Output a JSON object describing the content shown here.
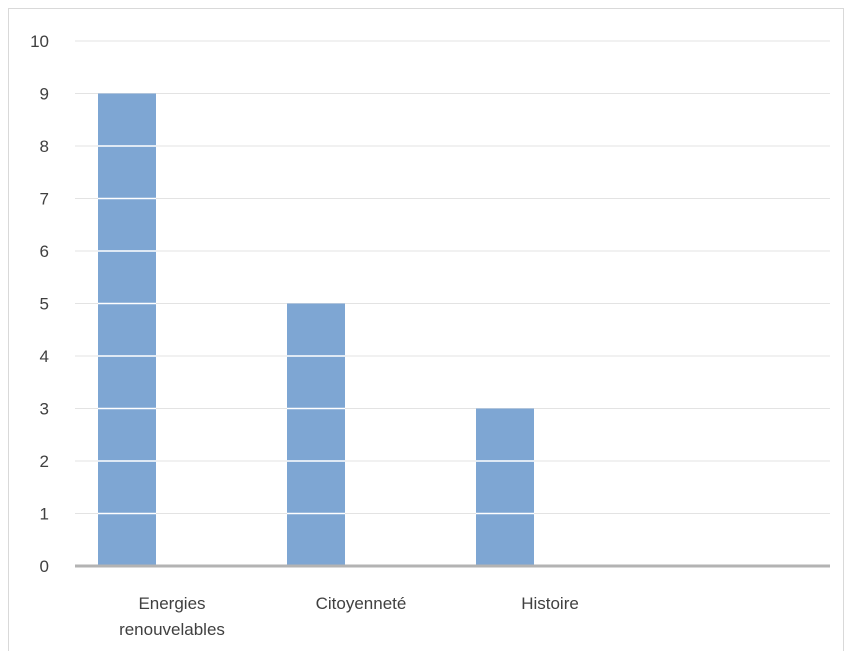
{
  "chart_data": {
    "type": "bar",
    "categories": [
      [
        "Energies",
        "renouvelables"
      ],
      [
        "Citoyenneté"
      ],
      [
        "Histoire"
      ]
    ],
    "values": [
      9,
      5,
      3
    ],
    "ylim": [
      0,
      10
    ],
    "yticks": [
      0,
      1,
      2,
      3,
      4,
      5,
      6,
      7,
      8,
      9,
      10
    ],
    "grid": true,
    "colors": {
      "bar": "#7ea6d3",
      "grid": "#e3e3e3",
      "axis": "#b3b3b3",
      "text": "#404040"
    }
  }
}
